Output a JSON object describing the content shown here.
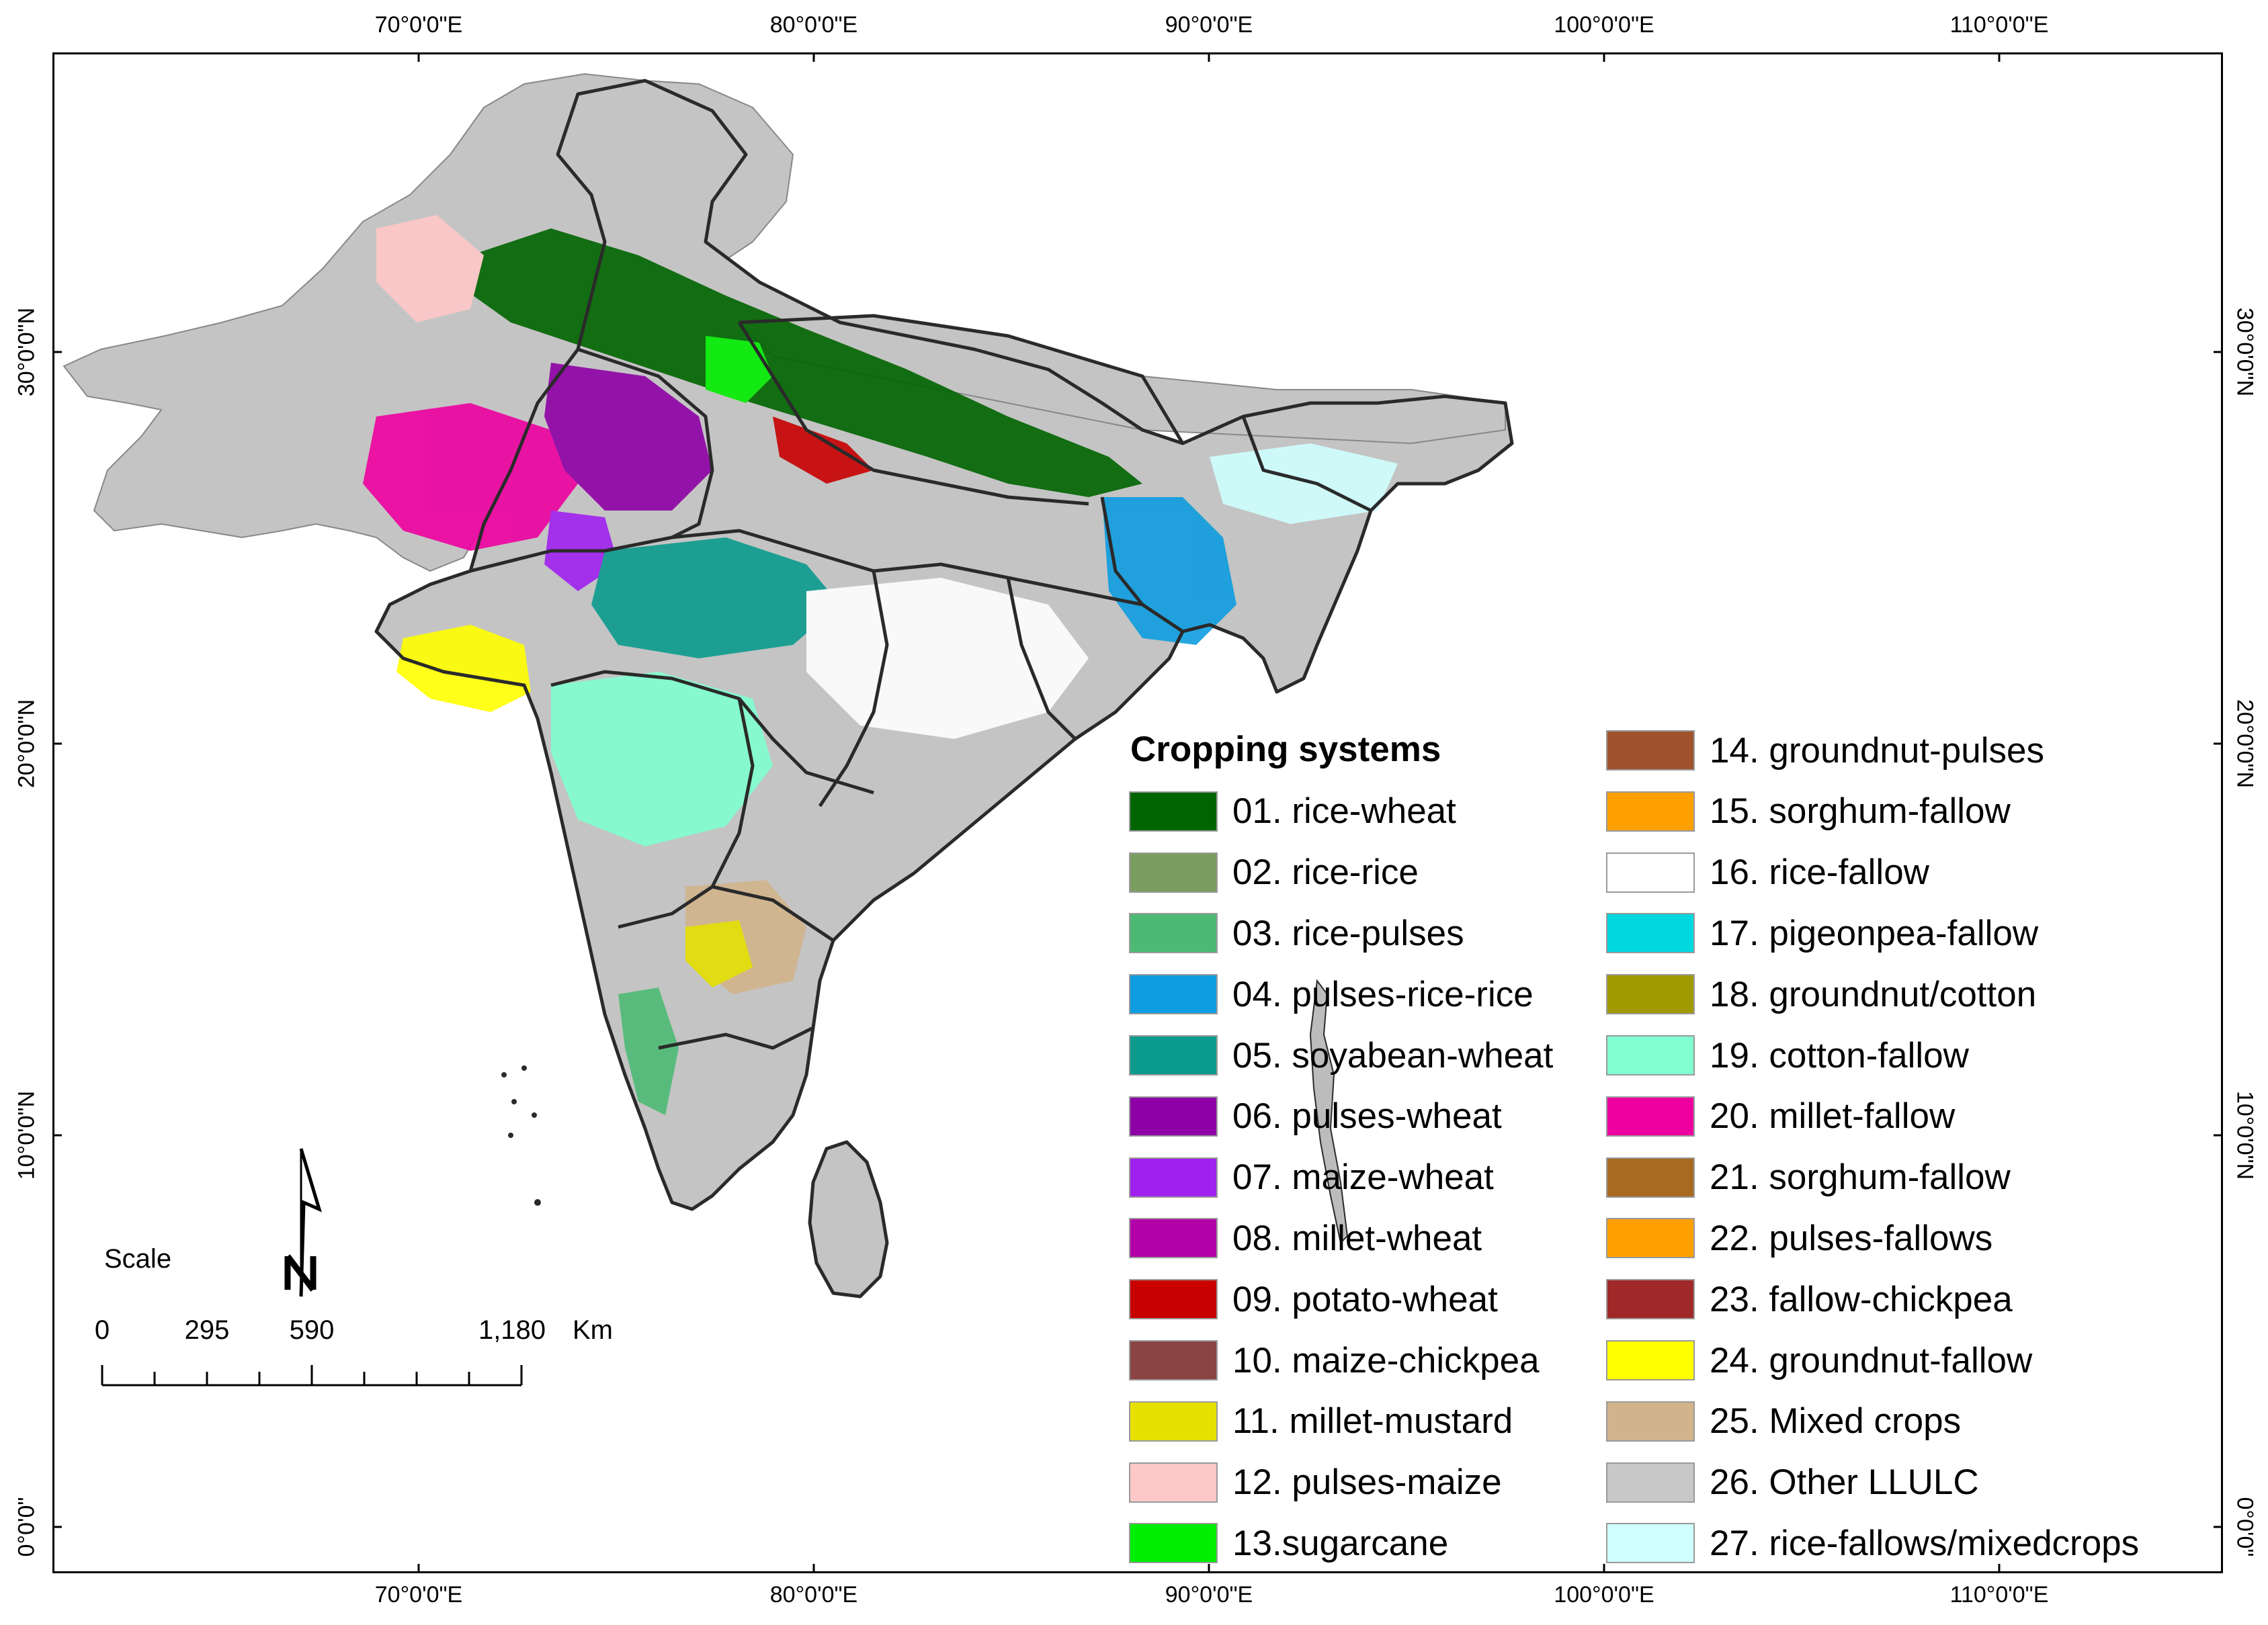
{
  "axes": {
    "longitude_labels": [
      "70°0'0\"E",
      "80°0'0\"E",
      "90°0'0\"E",
      "100°0'0\"E",
      "110°0'0\"E"
    ],
    "latitude_labels": [
      "30°0'0\"N",
      "20°0'0\"N",
      "10°0'0\"N",
      "0°0'0\""
    ]
  },
  "legend": {
    "title": "Cropping systems",
    "items": [
      {
        "label": "01. rice-wheat",
        "color": "#006400"
      },
      {
        "label": "02. rice-rice",
        "color": "#7a9e5f"
      },
      {
        "label": "03. rice-pulses",
        "color": "#4cba74"
      },
      {
        "label": "04. pulses-rice-rice",
        "color": "#0e9de0"
      },
      {
        "label": "05. soyabean-wheat",
        "color": "#0b9a8e"
      },
      {
        "label": "06. pulses-wheat",
        "color": "#8e00a6"
      },
      {
        "label": "07. maize-wheat",
        "color": "#a020f0"
      },
      {
        "label": "08. millet-wheat",
        "color": "#b300a8"
      },
      {
        "label": "09. potato-wheat",
        "color": "#c80000"
      },
      {
        "label": "10. maize-chickpea",
        "color": "#8b4444"
      },
      {
        "label": "11. millet-mustard",
        "color": "#e6e000"
      },
      {
        "label": "12. pulses-maize",
        "color": "#ffc8c8"
      },
      {
        "label": "13.sugarcane",
        "color": "#00ee00"
      },
      {
        "label": "14. groundnut-pulses",
        "color": "#a0522d"
      },
      {
        "label": "15. sorghum-fallow",
        "color": "#ffa000"
      },
      {
        "label": "16. rice-fallow",
        "color": "#ffffff"
      },
      {
        "label": "17. pigeonpea-fallow",
        "color": "#00d8e0"
      },
      {
        "label": "18. groundnut/cotton",
        "color": "#a09a00"
      },
      {
        "label": "19. cotton-fallow",
        "color": "#80ffd0"
      },
      {
        "label": "20. millet-fallow",
        "color": "#ee00a0"
      },
      {
        "label": "21. sorghum-fallow",
        "color": "#a86a20"
      },
      {
        "label": "22. pulses-fallows",
        "color": "#ffa000"
      },
      {
        "label": "23. fallow-chickpea",
        "color": "#a02828"
      },
      {
        "label": "24. groundnut-fallow",
        "color": "#ffff00"
      },
      {
        "label": "25. Mixed crops",
        "color": "#d2b48c"
      },
      {
        "label": "26. Other LLULC",
        "color": "#c8c8c8"
      },
      {
        "label": "27. rice-fallows/mixedcrops",
        "color": "#d0ffff"
      }
    ]
  },
  "scale_bar": {
    "title": "Scale",
    "labels": [
      "0",
      "295",
      "590",
      "1,180"
    ],
    "unit": "Km"
  },
  "north_arrow": {
    "letter": "N"
  },
  "colors": {
    "land": "#c4c4c4",
    "boundary": "#2a2a2a",
    "frame": "#000000"
  }
}
